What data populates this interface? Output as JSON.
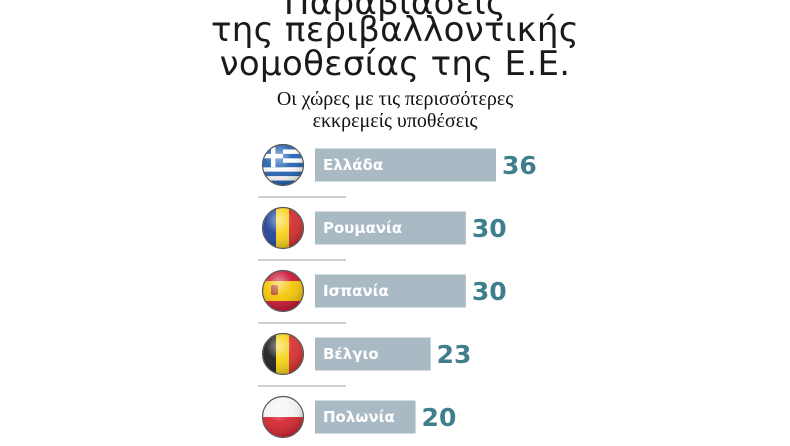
{
  "chart_data": {
    "type": "bar",
    "title_lines": [
      "Παραβιάσεις",
      "της περιβαλλοντικής",
      "νομοθεσίας της Ε.Ε."
    ],
    "subtitle_lines": [
      "Οι χώρες με τις περισσότερες",
      "εκκρεμείς υποθέσεις"
    ],
    "categories": [
      "Ελλάδα",
      "Ρουμανία",
      "Ισπανία",
      "Βέλγιο",
      "Πολωνία"
    ],
    "values": [
      36,
      30,
      30,
      23,
      20
    ],
    "orientation": "horizontal",
    "xlim": [
      0,
      36
    ],
    "grid": false,
    "legend": "none",
    "colors": {
      "bar": "#a9bac4",
      "value_text": "#3f7f8c",
      "separator": "#9aa0a6"
    },
    "flag_icons": [
      "greece-flag-icon",
      "romania-flag-icon",
      "spain-flag-icon",
      "belgium-flag-icon",
      "poland-flag-icon"
    ]
  }
}
